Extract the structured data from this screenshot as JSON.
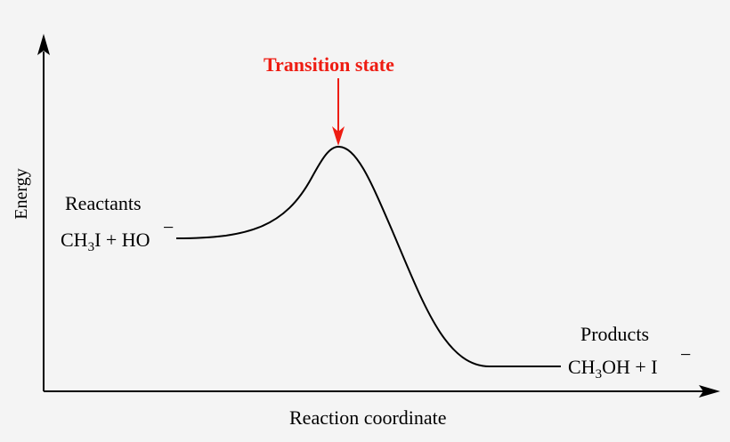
{
  "axes": {
    "y_label": "Energy",
    "x_label": "Reaction coordinate"
  },
  "transition_state": {
    "label": "Transition state",
    "color": "#ee1c12"
  },
  "reactants": {
    "heading": "Reactants",
    "formula_part1": "CH",
    "formula_sub": "3",
    "formula_part2": "I + HO",
    "charge": "−"
  },
  "products": {
    "heading": "Products",
    "formula_part1": "CH",
    "formula_sub": "3",
    "formula_part2": "OH + I",
    "charge": "−"
  }
}
